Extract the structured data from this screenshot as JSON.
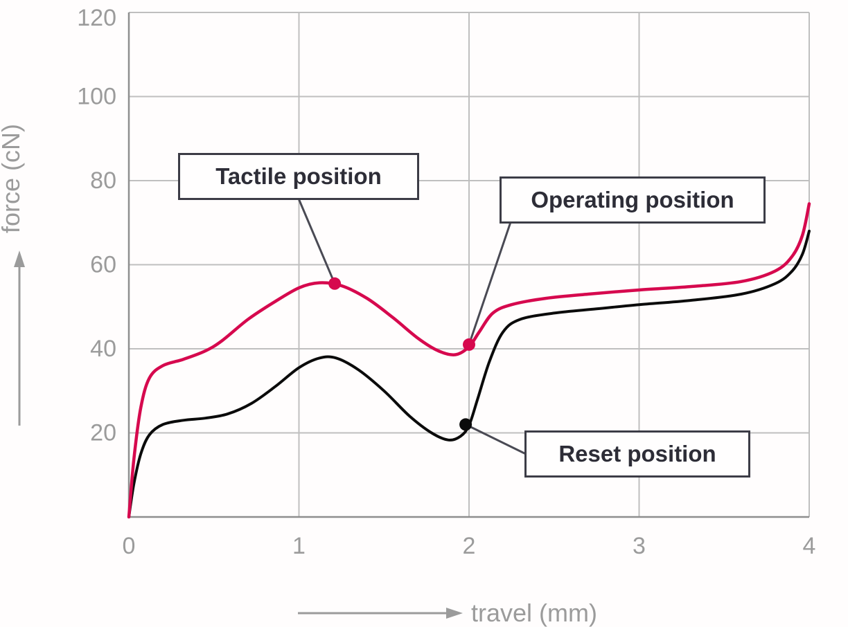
{
  "style": {
    "background": "#fffdfd",
    "grid_color": "#bfbfbf",
    "axis_color": "#8e8e8e",
    "tick_color": "#9b9b9b",
    "label_color": "#9b9b9b",
    "leader_color": "#4a4a54",
    "callout_border": "#3c3c46",
    "callout_text": "#2d2d37",
    "callout_bg": "#fffefe",
    "press_color": "#d6094e",
    "release_color": "#0b0b0b"
  },
  "chart_data": {
    "type": "line",
    "title": "",
    "xlabel": "travel (mm)",
    "ylabel": "force (cN)",
    "xlim": [
      0,
      4
    ],
    "ylim": [
      0,
      120
    ],
    "xticks": [
      0,
      1,
      2,
      3,
      4
    ],
    "yticks": [
      20,
      40,
      60,
      80,
      100,
      120
    ],
    "grid": true,
    "legend": "none",
    "series": [
      {
        "name": "release-force",
        "color": "#0b0b0b",
        "width": 4,
        "points": [
          [
            0,
            0
          ],
          [
            0.03,
            8
          ],
          [
            0.07,
            15
          ],
          [
            0.12,
            19.5
          ],
          [
            0.2,
            22
          ],
          [
            0.32,
            23
          ],
          [
            0.45,
            23.5
          ],
          [
            0.58,
            24.5
          ],
          [
            0.72,
            27
          ],
          [
            0.86,
            31
          ],
          [
            1.0,
            35.5
          ],
          [
            1.12,
            37.8
          ],
          [
            1.22,
            37.8
          ],
          [
            1.35,
            35
          ],
          [
            1.5,
            30
          ],
          [
            1.65,
            24
          ],
          [
            1.78,
            20
          ],
          [
            1.88,
            18.3
          ],
          [
            1.95,
            19.2
          ],
          [
            2.0,
            21.8
          ],
          [
            2.05,
            28
          ],
          [
            2.12,
            37
          ],
          [
            2.2,
            44
          ],
          [
            2.3,
            47
          ],
          [
            2.5,
            48.5
          ],
          [
            2.75,
            49.5
          ],
          [
            3.0,
            50.5
          ],
          [
            3.3,
            51.5
          ],
          [
            3.6,
            53
          ],
          [
            3.8,
            55.5
          ],
          [
            3.9,
            58.5
          ],
          [
            3.96,
            62.5
          ],
          [
            4.0,
            68
          ]
        ]
      },
      {
        "name": "press-force",
        "color": "#d6094e",
        "width": 4.5,
        "points": [
          [
            0,
            0
          ],
          [
            0.03,
            14
          ],
          [
            0.07,
            26
          ],
          [
            0.12,
            33
          ],
          [
            0.2,
            36
          ],
          [
            0.32,
            37.5
          ],
          [
            0.45,
            39.5
          ],
          [
            0.55,
            42
          ],
          [
            0.7,
            47
          ],
          [
            0.85,
            51
          ],
          [
            1.0,
            54.5
          ],
          [
            1.12,
            55.7
          ],
          [
            1.25,
            55
          ],
          [
            1.4,
            52
          ],
          [
            1.55,
            47.5
          ],
          [
            1.7,
            42.5
          ],
          [
            1.82,
            39.5
          ],
          [
            1.92,
            38.6
          ],
          [
            2.0,
            40.5
          ],
          [
            2.06,
            44
          ],
          [
            2.14,
            48.5
          ],
          [
            2.25,
            50.5
          ],
          [
            2.45,
            52
          ],
          [
            2.7,
            53
          ],
          [
            3.0,
            54
          ],
          [
            3.3,
            54.8
          ],
          [
            3.6,
            56
          ],
          [
            3.8,
            58.5
          ],
          [
            3.9,
            62
          ],
          [
            3.96,
            67
          ],
          [
            4.0,
            74.5
          ]
        ]
      }
    ],
    "markers": [
      {
        "id": "tactile",
        "label": "Tactile position",
        "x": 1.21,
        "y": 55.5,
        "color": "#d6094e"
      },
      {
        "id": "operating",
        "label": "Operating position",
        "x": 2.0,
        "y": 41,
        "color": "#d6094e"
      },
      {
        "id": "reset",
        "label": "Reset position",
        "x": 1.98,
        "y": 22,
        "color": "#0b0b0b"
      }
    ]
  }
}
